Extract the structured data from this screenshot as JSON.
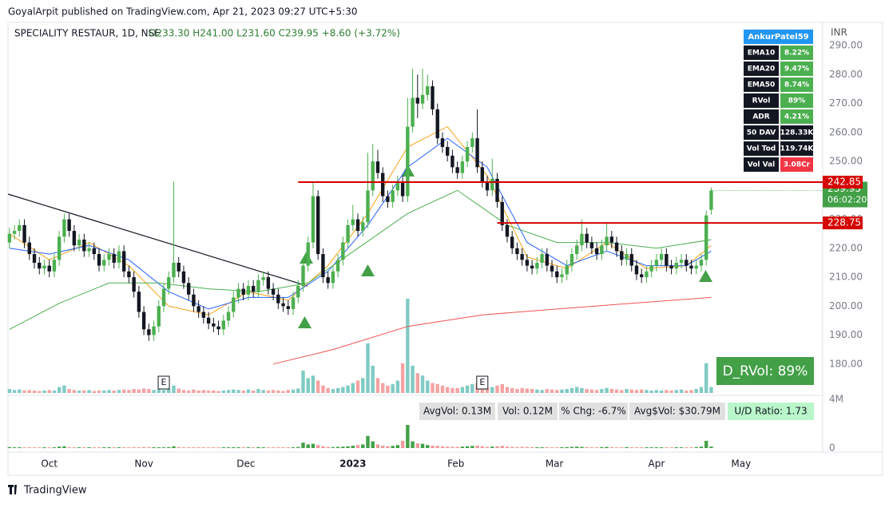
{
  "header": {
    "published": "GoyalArpit published on TradingView.com, Apr 21, 2023 09:27 UTC+5:30"
  },
  "chart_data": {
    "type": "candlestick",
    "title": "SPECIALITY RESTAUR, 1D, NSE",
    "ohlc_text": "O233.30 H241.00 L231.60 C239.95 +8.60 (+3.72%)",
    "currency": "INR",
    "xlim": [
      -0.3,
      163.4
    ],
    "xticks": [
      {
        "value": 8,
        "label": "Oct"
      },
      {
        "value": 27,
        "label": "Nov"
      },
      {
        "value": 47.5,
        "label": "Dec"
      },
      {
        "value": 69,
        "label": "2023"
      },
      {
        "value": 89.7,
        "label": "Feb"
      },
      {
        "value": 109.5,
        "label": "Mar"
      },
      {
        "value": 130,
        "label": "Apr"
      },
      {
        "value": 147,
        "label": "May"
      }
    ],
    "ylim": [
      170,
      297.5
    ],
    "yticks": [
      {
        "value": 180,
        "label": "180.00"
      },
      {
        "value": 190,
        "label": "190.00"
      },
      {
        "value": 200,
        "label": "200.00"
      },
      {
        "value": 210,
        "label": "210.00"
      },
      {
        "value": 220,
        "label": "220.00"
      },
      {
        "value": 230,
        "label": "230.00"
      },
      {
        "value": 240,
        "label": "240.00"
      },
      {
        "value": 250,
        "label": "250.00"
      },
      {
        "value": 260,
        "label": "260.00"
      },
      {
        "value": 270,
        "label": "270.00"
      },
      {
        "value": 280,
        "label": "280.00"
      },
      {
        "value": 290,
        "label": "290.00"
      }
    ],
    "up_color": "#4caf50",
    "down_color": "#131722",
    "open": [
      222,
      225,
      226,
      228,
      222,
      218,
      215,
      213,
      214,
      212,
      216,
      224,
      230,
      226,
      221,
      223,
      219,
      220,
      218,
      214,
      216,
      218,
      215,
      219,
      212,
      210,
      205,
      198,
      192,
      190,
      193,
      200,
      206,
      210,
      215,
      212,
      208,
      204,
      200,
      198,
      196,
      194,
      193,
      192,
      195,
      198,
      203,
      206,
      204,
      207,
      205,
      209,
      210,
      206,
      204,
      201,
      200,
      199,
      203,
      207,
      214,
      222,
      238,
      218,
      210,
      208,
      212,
      216,
      222,
      228,
      230,
      226,
      229,
      240,
      250,
      246,
      238,
      236,
      240,
      243,
      238,
      262,
      272,
      270,
      273,
      276,
      268,
      258,
      255,
      252,
      248,
      246,
      250,
      255,
      258,
      248,
      243,
      240,
      244,
      236,
      228,
      224,
      220,
      218,
      216,
      214,
      213,
      215,
      218,
      214,
      212,
      210,
      211,
      214,
      218,
      221,
      225,
      222,
      220,
      218,
      221,
      224,
      222,
      219,
      216,
      218,
      214,
      211,
      210,
      212,
      214,
      216,
      218,
      214,
      213,
      215,
      216,
      214,
      213,
      214,
      216,
      233.3
    ],
    "high": [
      227,
      228,
      230,
      230,
      224,
      220,
      217,
      216,
      216,
      218,
      226,
      232,
      232,
      228,
      225,
      225,
      222,
      222,
      220,
      218,
      220,
      220,
      221,
      221,
      214,
      212,
      207,
      200,
      194,
      195,
      202,
      208,
      212,
      243,
      217,
      214,
      210,
      206,
      202,
      200,
      198,
      196,
      195,
      197,
      200,
      205,
      208,
      208,
      209,
      209,
      211,
      212,
      212,
      208,
      206,
      203,
      202,
      205,
      209,
      216,
      224,
      243,
      240,
      220,
      212,
      214,
      218,
      224,
      230,
      235,
      232,
      231,
      253,
      256,
      254,
      248,
      240,
      242,
      245,
      245,
      272,
      282,
      280,
      282,
      280,
      278,
      270,
      260,
      257,
      254,
      250,
      252,
      257,
      260,
      268,
      250,
      245,
      251,
      246,
      238,
      230,
      226,
      222,
      220,
      218,
      216,
      217,
      220,
      220,
      216,
      214,
      213,
      216,
      220,
      223,
      230,
      227,
      224,
      222,
      223,
      229,
      226,
      224,
      221,
      220,
      220,
      216,
      213,
      214,
      216,
      218,
      220,
      220,
      216,
      217,
      218,
      218,
      216,
      216,
      218,
      233,
      241
    ],
    "low": [
      220,
      223,
      224,
      220,
      216,
      213,
      211,
      211,
      210,
      210,
      214,
      222,
      224,
      219,
      219,
      217,
      217,
      216,
      212,
      212,
      214,
      213,
      213,
      210,
      208,
      203,
      196,
      190,
      188,
      188,
      191,
      198,
      204,
      208,
      210,
      206,
      202,
      198,
      196,
      194,
      192,
      191,
      190,
      190,
      193,
      196,
      201,
      202,
      202,
      203,
      203,
      207,
      204,
      202,
      199,
      198,
      197,
      197,
      201,
      205,
      212,
      220,
      216,
      208,
      206,
      206,
      210,
      214,
      220,
      226,
      224,
      224,
      227,
      238,
      244,
      236,
      234,
      234,
      238,
      236,
      236,
      260,
      265,
      268,
      271,
      266,
      256,
      253,
      250,
      246,
      244,
      244,
      248,
      253,
      246,
      241,
      238,
      238,
      234,
      226,
      222,
      218,
      216,
      214,
      212,
      211,
      211,
      213,
      212,
      210,
      208,
      208,
      209,
      212,
      216,
      219,
      220,
      218,
      216,
      216,
      219,
      220,
      217,
      214,
      214,
      212,
      209,
      208,
      208,
      210,
      212,
      214,
      212,
      211,
      211,
      213,
      212,
      211,
      211,
      212,
      214,
      231.6
    ],
    "close": [
      225,
      226,
      228,
      222,
      218,
      215,
      213,
      214,
      212,
      216,
      224,
      230,
      226,
      221,
      223,
      219,
      220,
      218,
      214,
      216,
      218,
      215,
      219,
      212,
      210,
      205,
      198,
      192,
      190,
      193,
      200,
      206,
      210,
      215,
      212,
      208,
      204,
      200,
      198,
      196,
      194,
      193,
      192,
      195,
      198,
      203,
      206,
      204,
      207,
      205,
      209,
      210,
      206,
      204,
      201,
      200,
      199,
      203,
      207,
      214,
      222,
      238,
      218,
      210,
      208,
      212,
      216,
      222,
      228,
      230,
      226,
      229,
      240,
      250,
      246,
      238,
      236,
      240,
      243,
      238,
      262,
      272,
      270,
      273,
      276,
      268,
      258,
      255,
      252,
      248,
      246,
      250,
      255,
      258,
      248,
      243,
      240,
      244,
      236,
      228,
      224,
      220,
      218,
      216,
      214,
      213,
      215,
      218,
      214,
      212,
      210,
      211,
      214,
      218,
      221,
      225,
      222,
      220,
      218,
      221,
      224,
      222,
      219,
      216,
      218,
      214,
      211,
      210,
      212,
      214,
      216,
      218,
      214,
      213,
      215,
      216,
      214,
      213,
      214,
      216,
      231.35,
      239.95
    ],
    "volume": {
      "up_color": "#80cbc4",
      "down_color": "#f4a3a3",
      "pane_up_color": "#43a047",
      "pane_down_color": "#ef9a9a",
      "ylim": [
        0,
        4
      ],
      "yticks": [
        0,
        {
          "value": 4,
          "label": "4M"
        }
      ],
      "values": [
        0.08,
        0.06,
        0.07,
        0.05,
        0.06,
        0.05,
        0.04,
        0.05,
        0.06,
        0.05,
        0.12,
        0.15,
        0.08,
        0.06,
        0.05,
        0.05,
        0.06,
        0.04,
        0.05,
        0.05,
        0.06,
        0.05,
        0.06,
        0.07,
        0.06,
        0.08,
        0.07,
        0.09,
        0.08,
        0.06,
        0.07,
        0.06,
        0.08,
        0.15,
        0.09,
        0.06,
        0.05,
        0.07,
        0.05,
        0.06,
        0.05,
        0.05,
        0.04,
        0.05,
        0.06,
        0.07,
        0.06,
        0.05,
        0.07,
        0.05,
        0.08,
        0.06,
        0.05,
        0.06,
        0.05,
        0.04,
        0.06,
        0.07,
        0.09,
        0.45,
        0.3,
        0.35,
        0.25,
        0.15,
        0.1,
        0.08,
        0.1,
        0.12,
        0.15,
        0.2,
        0.25,
        0.3,
        1.0,
        0.55,
        0.3,
        0.2,
        0.15,
        0.18,
        0.25,
        0.6,
        1.9,
        0.55,
        0.4,
        0.35,
        0.25,
        0.2,
        0.18,
        0.15,
        0.12,
        0.1,
        0.1,
        0.12,
        0.15,
        0.18,
        0.2,
        0.15,
        0.1,
        0.12,
        0.15,
        0.18,
        0.12,
        0.1,
        0.08,
        0.1,
        0.09,
        0.08,
        0.07,
        0.06,
        0.08,
        0.07,
        0.06,
        0.07,
        0.08,
        0.1,
        0.12,
        0.1,
        0.08,
        0.07,
        0.06,
        0.08,
        0.1,
        0.08,
        0.07,
        0.06,
        0.08,
        0.07,
        0.06,
        0.07,
        0.06,
        0.05,
        0.06,
        0.05,
        0.06,
        0.05,
        0.06,
        0.07,
        0.05,
        0.06,
        0.08,
        0.12,
        0.6,
        0.12
      ]
    },
    "lines": [
      {
        "color": "#f7a21b",
        "x": [
          0,
          8,
          16,
          24,
          32,
          40,
          48,
          56,
          64,
          72,
          80,
          88,
          96,
          104,
          112,
          120,
          128,
          136,
          141
        ],
        "values": [
          225,
          216,
          222,
          214,
          200,
          197,
          205,
          202,
          214,
          232,
          255,
          262,
          245,
          217,
          213,
          222,
          213,
          214,
          221
        ]
      },
      {
        "color": "#2962ff",
        "x": [
          0,
          8,
          16,
          24,
          32,
          40,
          48,
          56,
          64,
          72,
          80,
          88,
          96,
          104,
          112,
          120,
          128,
          136,
          141
        ],
        "values": [
          220,
          218,
          221,
          216,
          205,
          199,
          203,
          203,
          212,
          228,
          248,
          258,
          248,
          222,
          214,
          219,
          214,
          214,
          219
        ]
      },
      {
        "color": "#4caf50",
        "x": [
          0,
          10,
          20,
          30,
          40,
          50,
          60,
          70,
          80,
          90,
          100,
          110,
          120,
          130,
          141
        ],
        "values": [
          192,
          201,
          208,
          208,
          206,
          205,
          208,
          220,
          232,
          240,
          228,
          222,
          222,
          220,
          223
        ]
      },
      {
        "color": "#ef5350",
        "x": [
          53,
          65,
          80,
          95,
          110,
          125,
          141
        ],
        "values": [
          180,
          185,
          193,
          197,
          199,
          201,
          203
        ]
      }
    ],
    "levels": [
      {
        "value": 242.85,
        "x": 58,
        "color": "#d50000"
      },
      {
        "value": 228.75,
        "x": 98,
        "color": "#d50000"
      }
    ],
    "countdown": "06:02:20",
    "events": [
      {
        "x": 31,
        "label": "E"
      },
      {
        "x": 95,
        "label": "E"
      }
    ],
    "d_rvol": "D_RVol: 89%"
  },
  "stats_table": {
    "title": "AnkurPatel59",
    "rows": [
      {
        "label": "EMA10",
        "value": "8.22%",
        "value_color": "#4caf50"
      },
      {
        "label": "EMA20",
        "value": "9.47%",
        "value_color": "#4caf50"
      },
      {
        "label": "EMA50",
        "value": "8.74%",
        "value_color": "#4caf50"
      },
      {
        "label": "RVol",
        "value": "89%",
        "value_color": "#4caf50"
      },
      {
        "label": "ADR",
        "value": "4.21%",
        "value_color": "#4caf50"
      },
      {
        "label": "50 DAV",
        "value": "128.33K",
        "value_color": "#131722"
      },
      {
        "label": "Vol Tod",
        "value": "119.74K",
        "value_color": "#131722"
      },
      {
        "label": "Vol Val",
        "value": "3.08Cr",
        "value_color": "#f23645"
      }
    ]
  },
  "volume_stats": [
    "AvgVol: 0.13M",
    "Vol: 0.12M",
    "% Chg: -6.7%",
    "Avg$Vol: $30.79M",
    "U/D Ratio: 1.73"
  ],
  "footer": {
    "brand": "TradingView"
  }
}
